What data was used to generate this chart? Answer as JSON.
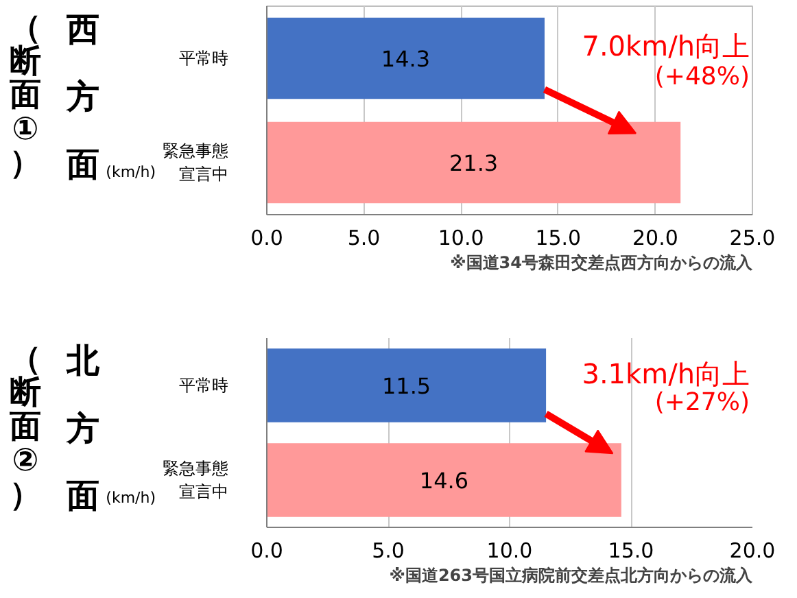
{
  "chart_data": [
    {
      "type": "bar",
      "orientation": "horizontal",
      "title": "（断面①）",
      "subtitle": "西方面",
      "xlabel": "(km/h)",
      "categories": [
        "平常時",
        "緊急事態宣言中"
      ],
      "values": [
        14.3,
        21.3
      ],
      "colors": [
        "#4472c4",
        "#ff9999"
      ],
      "xlim": [
        0,
        25
      ],
      "xticks": [
        {
          "value": 0,
          "label": "0.0"
        },
        {
          "value": 5,
          "label": "5.0"
        },
        {
          "value": 10,
          "label": "10.0"
        },
        {
          "value": 15,
          "label": "15.0"
        },
        {
          "value": 20,
          "label": "20.0"
        },
        {
          "value": 25,
          "label": "25.0"
        }
      ],
      "grid": "x",
      "data_labels": true,
      "annotations": [
        "7.0km/h向上",
        "(+48%)",
        "※国道34号森田交差点西方向からの流入"
      ]
    },
    {
      "type": "bar",
      "orientation": "horizontal",
      "title": "（断面②）",
      "subtitle": "北方面",
      "xlabel": "(km/h)",
      "categories": [
        "平常時",
        "緊急事態宣言中"
      ],
      "values": [
        11.5,
        14.6
      ],
      "colors": [
        "#4472c4",
        "#ff9999"
      ],
      "xlim": [
        0,
        20
      ],
      "xticks": [
        {
          "value": 0,
          "label": "0.0"
        },
        {
          "value": 5,
          "label": "5.0"
        },
        {
          "value": 10,
          "label": "10.0"
        },
        {
          "value": 15,
          "label": "15.0"
        },
        {
          "value": 20,
          "label": "20.0"
        }
      ],
      "grid": "x",
      "data_labels": true,
      "annotations": [
        "3.1km/h向上",
        "(+27%)",
        "※国道263号国立病院前交差点北方向からの流入"
      ]
    }
  ]
}
